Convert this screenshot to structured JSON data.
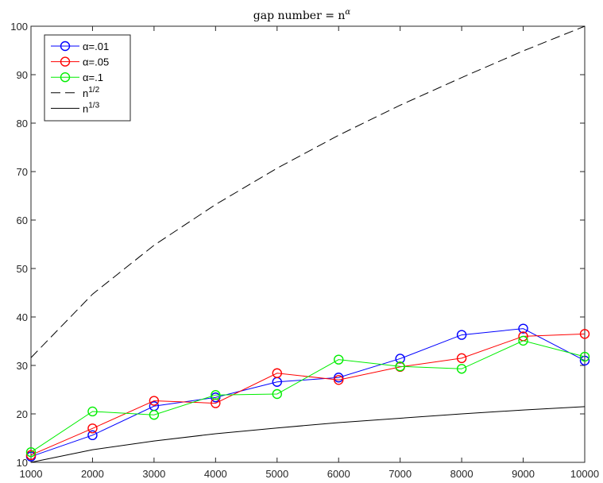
{
  "chart_data": {
    "type": "line",
    "title": "gap number = n",
    "title_sup": "α",
    "xlabel": "",
    "ylabel": "",
    "x": [
      1000,
      2000,
      3000,
      4000,
      5000,
      6000,
      7000,
      8000,
      9000,
      10000
    ],
    "xlim": [
      1000,
      10000
    ],
    "ylim": [
      10,
      100
    ],
    "xticks": [
      "1000",
      "2000",
      "3000",
      "4000",
      "5000",
      "6000",
      "7000",
      "8000",
      "9000",
      "10000"
    ],
    "yticks": [
      "10",
      "20",
      "30",
      "40",
      "50",
      "60",
      "70",
      "80",
      "90",
      "100"
    ],
    "grid": false,
    "legend_position": "top-left",
    "series": [
      {
        "name": "α=.01",
        "color": "#0000ff",
        "marker": "circle",
        "dash": "solid",
        "values": [
          11.2,
          15.6,
          21.6,
          23.4,
          26.6,
          27.5,
          31.4,
          36.3,
          37.6,
          31.0
        ]
      },
      {
        "name": "α=.05",
        "color": "#ff0000",
        "marker": "circle",
        "dash": "solid",
        "values": [
          11.5,
          17.0,
          22.7,
          22.2,
          28.4,
          27.0,
          29.7,
          31.5,
          36.0,
          36.5
        ]
      },
      {
        "name": "α=.1",
        "color": "#00ee00",
        "marker": "circle",
        "dash": "solid",
        "values": [
          12.1,
          20.5,
          19.8,
          23.9,
          24.1,
          31.2,
          29.8,
          29.3,
          35.1,
          31.8
        ]
      },
      {
        "name": "n",
        "name_sup": "1/2",
        "color": "#000000",
        "marker": "none",
        "dash": "dashed",
        "values": [
          31.6,
          44.7,
          54.8,
          63.2,
          70.7,
          77.5,
          83.7,
          89.4,
          94.9,
          100.0
        ]
      },
      {
        "name": "n",
        "name_sup": "1/3",
        "color": "#000000",
        "marker": "none",
        "dash": "solid",
        "values": [
          10.0,
          12.6,
          14.4,
          15.9,
          17.1,
          18.2,
          19.1,
          20.0,
          20.8,
          21.5
        ]
      }
    ]
  }
}
